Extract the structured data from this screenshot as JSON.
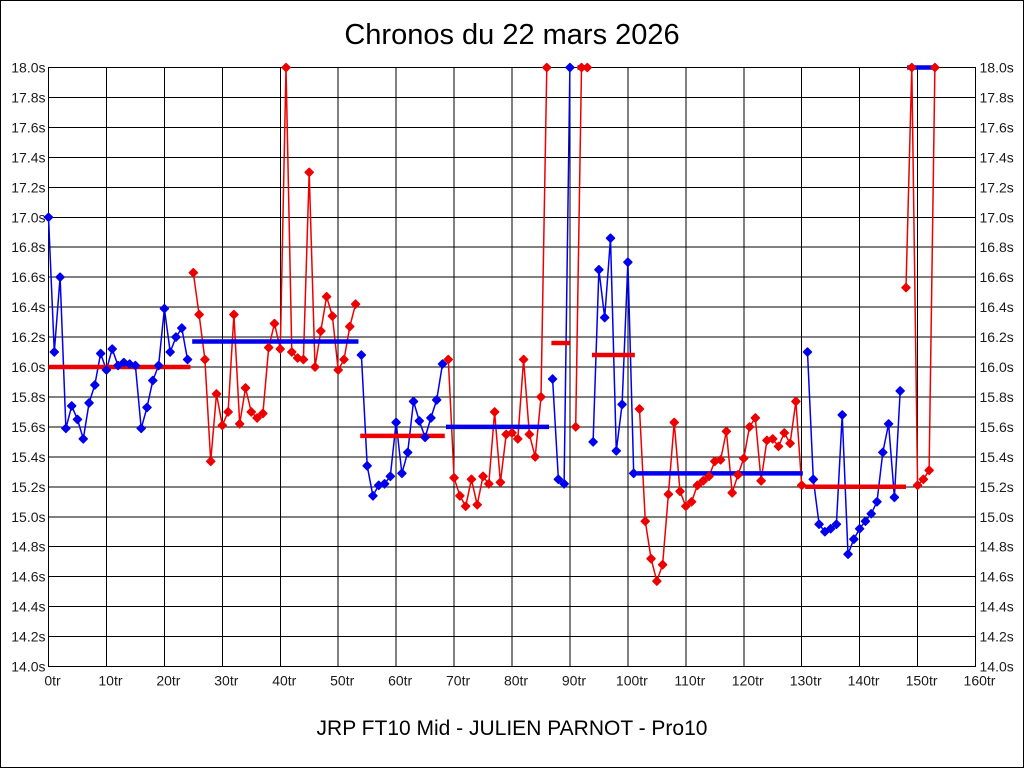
{
  "window": {
    "title": "Chronos du 22 mars 2026",
    "subtitle": "JRP FT10 Mid - JULIEN PARNOT - Pro10"
  },
  "chart_data": {
    "type": "line",
    "title": "Chronos du 22 mars 2026",
    "subtitle": "JRP FT10 Mid - JULIEN PARNOT - Pro10",
    "x_unit": "tr",
    "y_unit": "s",
    "xlim": [
      0,
      160
    ],
    "ylim": [
      14.0,
      18.0
    ],
    "grid": true,
    "clip_value": 18.0,
    "x_ticks": [
      0,
      10,
      20,
      30,
      40,
      50,
      60,
      70,
      80,
      90,
      100,
      110,
      120,
      130,
      140,
      150,
      160
    ],
    "x_tick_labels": [
      "0tr",
      "10tr",
      "20tr",
      "30tr",
      "40tr",
      "50tr",
      "60tr",
      "70tr",
      "80tr",
      "90tr",
      "100tr",
      "110tr",
      "120tr",
      "130tr",
      "140tr",
      "150tr",
      "160tr"
    ],
    "y_ticks": [
      18.0,
      17.8,
      17.6,
      17.4,
      17.2,
      17.0,
      16.8,
      16.6,
      16.4,
      16.2,
      16.0,
      15.8,
      15.6,
      15.4,
      15.2,
      15.0,
      14.8,
      14.6,
      14.4,
      14.2,
      14.0
    ],
    "y_tick_labels": [
      "18.0s",
      "17.8s",
      "17.6s",
      "17.4s",
      "17.2s",
      "17.0s",
      "16.8s",
      "16.6s",
      "16.4s",
      "16.2s",
      "16.0s",
      "15.8s",
      "15.6s",
      "15.4s",
      "15.2s",
      "15.0s",
      "14.8s",
      "14.6s",
      "14.4s",
      "14.2s",
      "14.0s"
    ],
    "colors": {
      "blue": "#0000ee",
      "red": "#ee0000",
      "grid": "#000000",
      "text": "#1a1a1a"
    },
    "series": [
      {
        "name": "stint-1",
        "color": "blue",
        "start_lap": 0,
        "values": [
          17.0,
          16.1,
          16.6,
          15.59,
          15.74,
          15.65,
          15.52,
          15.76,
          15.88,
          16.09,
          15.98,
          16.12,
          16.01,
          16.03,
          16.02,
          16.01,
          15.59,
          15.73,
          15.91,
          16.01,
          16.39,
          16.1,
          16.2,
          16.26,
          16.05
        ],
        "avg": {
          "value": 16.0,
          "color": "red",
          "from": 0,
          "to": 24.5
        }
      },
      {
        "name": "stint-2",
        "color": "red",
        "start_lap": 25,
        "values": [
          16.63,
          16.35,
          16.05,
          15.37,
          15.82,
          15.61,
          15.7,
          16.35,
          15.62,
          15.86,
          15.7,
          15.66,
          15.69,
          16.13,
          16.29,
          16.12,
          18.0,
          16.1,
          16.06,
          16.05,
          17.3,
          16.0,
          16.24,
          16.47,
          16.34,
          15.98,
          16.05,
          16.27,
          16.42
        ],
        "avg": {
          "value": 16.17,
          "color": "blue",
          "from": 24.8,
          "to": 53.5
        }
      },
      {
        "name": "stint-3",
        "color": "blue",
        "start_lap": 54,
        "values": [
          16.08,
          15.34,
          15.14,
          15.21,
          15.22,
          15.27,
          15.63,
          15.29,
          15.43,
          15.77,
          15.64,
          15.53,
          15.66,
          15.78,
          16.02
        ],
        "avg": {
          "value": 15.54,
          "color": "red",
          "from": 53.8,
          "to": 68.4
        }
      },
      {
        "name": "stint-4",
        "color": "red",
        "start_lap": 69,
        "values": [
          16.05,
          15.26,
          15.14,
          15.07,
          15.25,
          15.08,
          15.27,
          15.22,
          15.7,
          15.23,
          15.55,
          15.56,
          15.52,
          16.05,
          15.55,
          15.4,
          15.8,
          18.0
        ],
        "avg": {
          "value": 15.6,
          "color": "blue",
          "from": 68.6,
          "to": 86.4
        }
      },
      {
        "name": "stint-5",
        "color": "blue",
        "start_lap": 87,
        "values": [
          15.92,
          15.25,
          15.22,
          18.0
        ],
        "avg": {
          "value": 16.16,
          "color": "red",
          "from": 86.8,
          "to": 90.0
        }
      },
      {
        "name": "stint-6",
        "color": "red",
        "start_lap": 91,
        "values": [
          15.6,
          18.0,
          18.0
        ],
        "avg": {
          "value": 18.0,
          "color": "blue",
          "from": 91.3,
          "to": 93.4
        }
      },
      {
        "name": "stint-7",
        "color": "blue",
        "start_lap": 94,
        "values": [
          15.5,
          16.65,
          16.33,
          16.86,
          15.44,
          15.75,
          16.7,
          15.29
        ],
        "avg": {
          "value": 16.08,
          "color": "red",
          "from": 93.8,
          "to": 101.2
        }
      },
      {
        "name": "stint-8",
        "color": "red",
        "start_lap": 102,
        "values": [
          15.72,
          14.97,
          14.72,
          14.57,
          14.68,
          15.15,
          15.63,
          15.17,
          15.07,
          15.1,
          15.21,
          15.24,
          15.27,
          15.37,
          15.38,
          15.57,
          15.16,
          15.28,
          15.39,
          15.6,
          15.66,
          15.24,
          15.51,
          15.52,
          15.47,
          15.56,
          15.49,
          15.77,
          15.21
        ],
        "avg": {
          "value": 15.29,
          "color": "blue",
          "from": 101.6,
          "to": 130.2
        }
      },
      {
        "name": "stint-9",
        "color": "blue",
        "start_lap": 131,
        "values": [
          16.1,
          15.25,
          14.95,
          14.9,
          14.92,
          14.95,
          15.68,
          14.75,
          14.85,
          14.92,
          14.97,
          15.02,
          15.1,
          15.43,
          15.62,
          15.13,
          15.84
        ],
        "avg": {
          "value": 15.2,
          "color": "red",
          "from": 130.6,
          "to": 148.0
        }
      },
      {
        "name": "stint-10",
        "color": "red",
        "start_lap": 148,
        "values": [
          16.53,
          18.0,
          15.21,
          15.25,
          15.31,
          18.0
        ],
        "avg": {
          "value": 18.0,
          "color": "blue",
          "from": 148.2,
          "to": 153.3
        }
      }
    ]
  }
}
